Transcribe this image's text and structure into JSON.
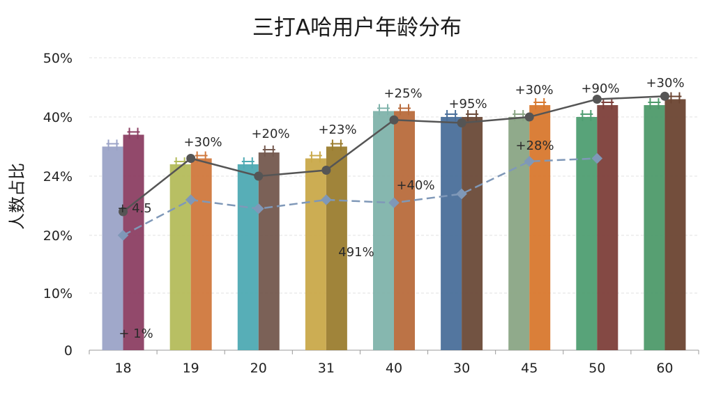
{
  "chart_data": {
    "type": "bar",
    "title": "三打A哈用户年龄分布",
    "ylabel": "人数占比",
    "xlabel": "",
    "categories": [
      "18",
      "19",
      "20",
      "31",
      "40",
      "30",
      "45",
      "50",
      "60"
    ],
    "y_tick_labels": [
      "0",
      "10%",
      "20%",
      "24%",
      "40%",
      "50%"
    ],
    "grid": true,
    "series": [
      {
        "values": [
          35,
          32,
          32,
          33,
          41,
          40,
          40,
          40,
          42
        ]
      },
      {
        "values": [
          37,
          33,
          34,
          35,
          41,
          40,
          42,
          42,
          43
        ]
      }
    ],
    "lines": [
      {
        "color": "#555555",
        "style": "solid",
        "values": [
          24,
          33,
          30,
          31,
          39.5,
          39,
          40,
          43,
          43.5
        ]
      },
      {
        "color": "#7f98b8",
        "style": "dashed",
        "values": [
          20,
          26,
          24.5,
          26,
          25.5,
          27,
          32.5,
          33,
          null
        ]
      }
    ],
    "colors": {
      "bars_a": [
        "#9ba3c7",
        "#b4bc5b",
        "#4eaab3",
        "#c9a94a",
        "#7fb3ab",
        "#4a6f9a",
        "#8aa585",
        "#4f9e72",
        "#4e9a6a"
      ],
      "bars_b": [
        "#8c3f63",
        "#d0783d",
        "#74594e",
        "#9b7d2f",
        "#b86b3c",
        "#6a4a38",
        "#d8782e",
        "#7d3f3a",
        "#6b4532"
      ]
    },
    "data_labels": [
      "+ 1%",
      "+30%",
      "+20%",
      "+23%",
      "+25%",
      "+95%",
      "+30%",
      "+90%",
      "+30%",
      "+ 4.5",
      "+40%",
      "+28%",
      "491%"
    ]
  }
}
